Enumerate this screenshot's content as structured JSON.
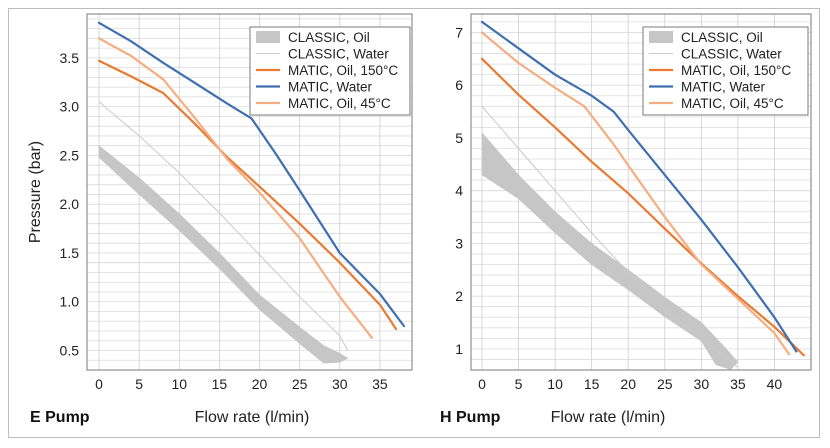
{
  "chart_data": [
    {
      "type": "area",
      "panel_label": "E Pump",
      "xlabel": "Flow rate (l/min)",
      "ylabel": "Pressure (bar)",
      "xlim": [
        -1.5,
        39
      ],
      "ylim": [
        0.3,
        3.95
      ],
      "x_ticks": [
        0,
        5,
        10,
        15,
        20,
        25,
        30,
        35
      ],
      "y_ticks": [
        0.5,
        1.0,
        1.5,
        2.0,
        2.5,
        3.0,
        3.5
      ],
      "y_tick_labels": [
        "0.5",
        "1.0",
        "1.5",
        "2.0",
        "2.5",
        "3.0",
        "3.5"
      ],
      "grid": {
        "horizontal_minor_step": 0.1,
        "vertical_at_ticks": true
      },
      "legend_position": "top-right",
      "series": [
        {
          "name": "CLASSIC, Oil",
          "kind": "band",
          "color": "#c6c6c6",
          "upper": [
            [
              0,
              2.6
            ],
            [
              5,
              2.27
            ],
            [
              10,
              1.9
            ],
            [
              15,
              1.5
            ],
            [
              20,
              1.07
            ],
            [
              25,
              0.74
            ],
            [
              28,
              0.55
            ],
            [
              30,
              0.47
            ],
            [
              31,
              0.42
            ]
          ],
          "lower": [
            [
              31,
              0.42
            ],
            [
              30,
              0.38
            ],
            [
              28,
              0.37
            ],
            [
              25,
              0.57
            ],
            [
              20,
              0.92
            ],
            [
              15,
              1.34
            ],
            [
              10,
              1.73
            ],
            [
              5,
              2.1
            ],
            [
              0,
              2.48
            ]
          ]
        },
        {
          "name": "CLASSIC, Water",
          "kind": "line",
          "color": "#cacaca",
          "width": 1,
          "points": [
            [
              0,
              3.05
            ],
            [
              5,
              2.7
            ],
            [
              10,
              2.32
            ],
            [
              15,
              1.91
            ],
            [
              20,
              1.48
            ],
            [
              25,
              1.05
            ],
            [
              30,
              0.65
            ],
            [
              31,
              0.5
            ]
          ]
        },
        {
          "name": "MATIC, Oil, 150°C",
          "kind": "line",
          "color": "#e97a32",
          "width": 2.2,
          "points": [
            [
              0,
              3.47
            ],
            [
              4,
              3.31
            ],
            [
              8,
              3.14
            ],
            [
              12,
              2.82
            ],
            [
              16,
              2.48
            ],
            [
              20,
              2.18
            ],
            [
              25,
              1.8
            ],
            [
              30,
              1.4
            ],
            [
              35,
              0.97
            ],
            [
              37,
              0.72
            ]
          ]
        },
        {
          "name": "MATIC, Water",
          "kind": "line",
          "color": "#3f6fb0",
          "width": 2.2,
          "points": [
            [
              0,
              3.86
            ],
            [
              4,
              3.67
            ],
            [
              8,
              3.45
            ],
            [
              12,
              3.24
            ],
            [
              16,
              3.03
            ],
            [
              19,
              2.88
            ],
            [
              22,
              2.52
            ],
            [
              25,
              2.14
            ],
            [
              30,
              1.5
            ],
            [
              35,
              1.08
            ],
            [
              38,
              0.75
            ]
          ]
        },
        {
          "name": "MATIC, Oil, 45°C",
          "kind": "line",
          "color": "#f5ad82",
          "width": 2.2,
          "points": [
            [
              0,
              3.7
            ],
            [
              4,
              3.52
            ],
            [
              8,
              3.28
            ],
            [
              12,
              2.88
            ],
            [
              16,
              2.46
            ],
            [
              20,
              2.12
            ],
            [
              25,
              1.65
            ],
            [
              30,
              1.05
            ],
            [
              34,
              0.63
            ]
          ]
        }
      ]
    },
    {
      "type": "area",
      "panel_label": "H Pump",
      "xlabel": "Flow rate (l/min)",
      "ylabel": "",
      "xlim": [
        -1.5,
        45
      ],
      "ylim": [
        0.6,
        7.35
      ],
      "x_ticks": [
        0,
        5,
        10,
        15,
        20,
        25,
        30,
        35,
        40
      ],
      "y_ticks": [
        1,
        2,
        3,
        4,
        5,
        6,
        7
      ],
      "y_tick_labels": [
        "1",
        "2",
        "3",
        "4",
        "5",
        "6",
        "7"
      ],
      "grid": {
        "horizontal_minor_step": 0.2,
        "vertical_at_ticks": true
      },
      "legend_position": "top-right",
      "series": [
        {
          "name": "CLASSIC, Oil",
          "kind": "band",
          "color": "#c6c6c6",
          "upper": [
            [
              0,
              5.1
            ],
            [
              5,
              4.3
            ],
            [
              10,
              3.6
            ],
            [
              15,
              3.0
            ],
            [
              20,
              2.5
            ],
            [
              25,
              1.98
            ],
            [
              30,
              1.5
            ],
            [
              33,
              1.06
            ],
            [
              35,
              0.75
            ]
          ],
          "lower": [
            [
              35,
              0.75
            ],
            [
              34,
              0.61
            ],
            [
              32,
              0.7
            ],
            [
              30,
              1.15
            ],
            [
              25,
              1.61
            ],
            [
              20,
              2.12
            ],
            [
              15,
              2.6
            ],
            [
              10,
              3.2
            ],
            [
              5,
              3.85
            ],
            [
              0,
              4.3
            ]
          ]
        },
        {
          "name": "CLASSIC, Water",
          "kind": "line",
          "color": "#cacaca",
          "width": 1,
          "points": [
            [
              0,
              5.6
            ],
            [
              5,
              4.8
            ],
            [
              10,
              4.0
            ],
            [
              15,
              3.2
            ],
            [
              20,
              2.45
            ],
            [
              25,
              1.75
            ],
            [
              30,
              1.2
            ],
            [
              35,
              0.65
            ]
          ]
        },
        {
          "name": "MATIC, Oil, 150°C",
          "kind": "line",
          "color": "#e97a32",
          "width": 2.2,
          "points": [
            [
              0,
              6.5
            ],
            [
              5,
              5.82
            ],
            [
              10,
              5.2
            ],
            [
              15,
              4.55
            ],
            [
              20,
              3.95
            ],
            [
              25,
              3.28
            ],
            [
              30,
              2.62
            ],
            [
              35,
              2.0
            ],
            [
              40,
              1.42
            ],
            [
              44,
              0.88
            ]
          ]
        },
        {
          "name": "MATIC, Water",
          "kind": "line",
          "color": "#3f6fb0",
          "width": 2.2,
          "points": [
            [
              0,
              7.2
            ],
            [
              5,
              6.7
            ],
            [
              10,
              6.2
            ],
            [
              15,
              5.8
            ],
            [
              18,
              5.5
            ],
            [
              20,
              5.15
            ],
            [
              25,
              4.3
            ],
            [
              30,
              3.45
            ],
            [
              35,
              2.55
            ],
            [
              40,
              1.6
            ],
            [
              43,
              0.95
            ]
          ]
        },
        {
          "name": "MATIC, Oil, 45°C",
          "kind": "line",
          "color": "#f5ad82",
          "width": 2.2,
          "points": [
            [
              0,
              7.0
            ],
            [
              5,
              6.42
            ],
            [
              10,
              5.95
            ],
            [
              14,
              5.6
            ],
            [
              18,
              4.88
            ],
            [
              20,
              4.48
            ],
            [
              25,
              3.5
            ],
            [
              30,
              2.6
            ],
            [
              35,
              1.95
            ],
            [
              40,
              1.3
            ],
            [
              42,
              0.9
            ]
          ]
        }
      ]
    }
  ]
}
